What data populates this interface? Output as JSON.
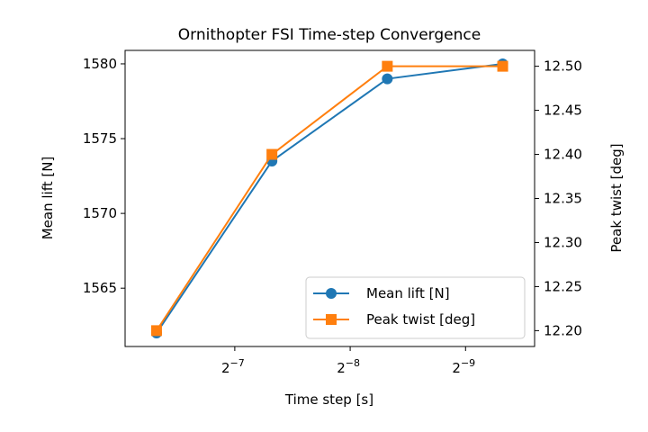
{
  "chart_data": {
    "type": "line",
    "title": "Ornithopter FSI Time-step Convergence",
    "xlabel": "Time step [s]",
    "ylabel_left": "Mean lift [N]",
    "ylabel_right": "Peak twist [deg]",
    "x_scale": "log2, reversed",
    "x": [
      0.0125,
      0.00625,
      0.003125,
      0.0015625
    ],
    "x_ticks": [
      {
        "value": 0.0078125,
        "base": "2",
        "exp": "−7"
      },
      {
        "value": 0.00390625,
        "base": "2",
        "exp": "−8"
      },
      {
        "value": 0.001953125,
        "base": "2",
        "exp": "−9"
      }
    ],
    "xlim": [
      0.0151,
      0.00129
    ],
    "ylim_left": [
      1561.1,
      1580.9
    ],
    "ylim_right": [
      12.182,
      12.518
    ],
    "y_ticks_left": [
      "1565",
      "1570",
      "1575",
      "1580"
    ],
    "y_ticks_right": [
      "12.20",
      "12.25",
      "12.30",
      "12.35",
      "12.40",
      "12.45",
      "12.50"
    ],
    "grid": false,
    "legend_position": "lower-right",
    "series": [
      {
        "name": "Mean lift [N]",
        "axis": "left",
        "color": "#1f77b4",
        "marker": "circle",
        "values": [
          1562.0,
          1573.5,
          1579.0,
          1580.0
        ]
      },
      {
        "name": "Peak twist [deg]",
        "axis": "right",
        "color": "#ff7f0e",
        "marker": "square",
        "values": [
          12.2,
          12.4,
          12.5,
          12.5
        ]
      }
    ]
  }
}
